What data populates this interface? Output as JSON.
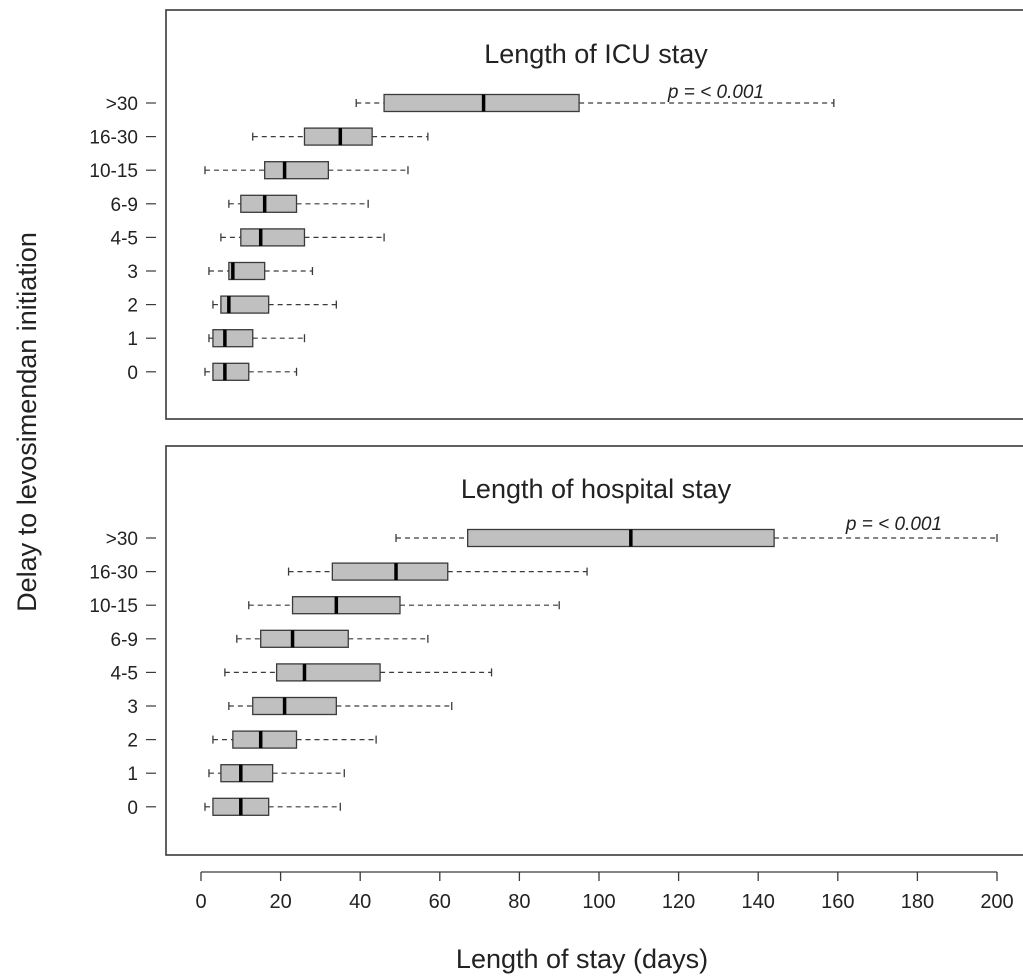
{
  "chart_data": {
    "type": "boxplot",
    "ylabel": "Delay to levosimendan initiation",
    "xlabel": "Length of stay (days)",
    "x_ticks": [
      0,
      20,
      40,
      60,
      80,
      100,
      120,
      140,
      160,
      180,
      200
    ],
    "xlim": [
      -8,
      207
    ],
    "categories": [
      ">30",
      "16-30",
      "10-15",
      "6-9",
      "4-5",
      "3",
      "2",
      "1",
      "0"
    ],
    "colors": {
      "box_fill": "#c0c0c0",
      "outline": "#3a3a3a"
    },
    "panels": [
      {
        "title": "Length of ICU stay",
        "p_value": "p = < 0.001",
        "boxes": [
          {
            "group": ">30",
            "min": 39,
            "q1": 46,
            "median": 71,
            "q3": 95,
            "max": 159
          },
          {
            "group": "16-30",
            "min": 13,
            "q1": 26,
            "median": 35,
            "q3": 43,
            "max": 57
          },
          {
            "group": "10-15",
            "min": 1,
            "q1": 16,
            "median": 21,
            "q3": 32,
            "max": 52
          },
          {
            "group": "6-9",
            "min": 7,
            "q1": 10,
            "median": 16,
            "q3": 24,
            "max": 42
          },
          {
            "group": "4-5",
            "min": 5,
            "q1": 10,
            "median": 15,
            "q3": 26,
            "max": 46
          },
          {
            "group": "3",
            "min": 2,
            "q1": 7,
            "median": 8,
            "q3": 16,
            "max": 28
          },
          {
            "group": "2",
            "min": 3,
            "q1": 5,
            "median": 7,
            "q3": 17,
            "max": 34
          },
          {
            "group": "1",
            "min": 2,
            "q1": 3,
            "median": 6,
            "q3": 13,
            "max": 26
          },
          {
            "group": "0",
            "min": 1,
            "q1": 3,
            "median": 6,
            "q3": 12,
            "max": 24
          }
        ]
      },
      {
        "title": "Length of hospital stay",
        "p_value": "p = < 0.001",
        "boxes": [
          {
            "group": ">30",
            "min": 49,
            "q1": 67,
            "median": 108,
            "q3": 144,
            "max": 200
          },
          {
            "group": "16-30",
            "min": 22,
            "q1": 33,
            "median": 49,
            "q3": 62,
            "max": 97
          },
          {
            "group": "10-15",
            "min": 12,
            "q1": 23,
            "median": 34,
            "q3": 50,
            "max": 90
          },
          {
            "group": "6-9",
            "min": 9,
            "q1": 15,
            "median": 23,
            "q3": 37,
            "max": 57
          },
          {
            "group": "4-5",
            "min": 6,
            "q1": 19,
            "median": 26,
            "q3": 45,
            "max": 73
          },
          {
            "group": "3",
            "min": 7,
            "q1": 13,
            "median": 21,
            "q3": 34,
            "max": 63
          },
          {
            "group": "2",
            "min": 3,
            "q1": 8,
            "median": 15,
            "q3": 24,
            "max": 44
          },
          {
            "group": "1",
            "min": 2,
            "q1": 5,
            "median": 10,
            "q3": 18,
            "max": 36
          },
          {
            "group": "0",
            "min": 1,
            "q1": 3,
            "median": 10,
            "q3": 17,
            "max": 35
          }
        ]
      }
    ]
  }
}
